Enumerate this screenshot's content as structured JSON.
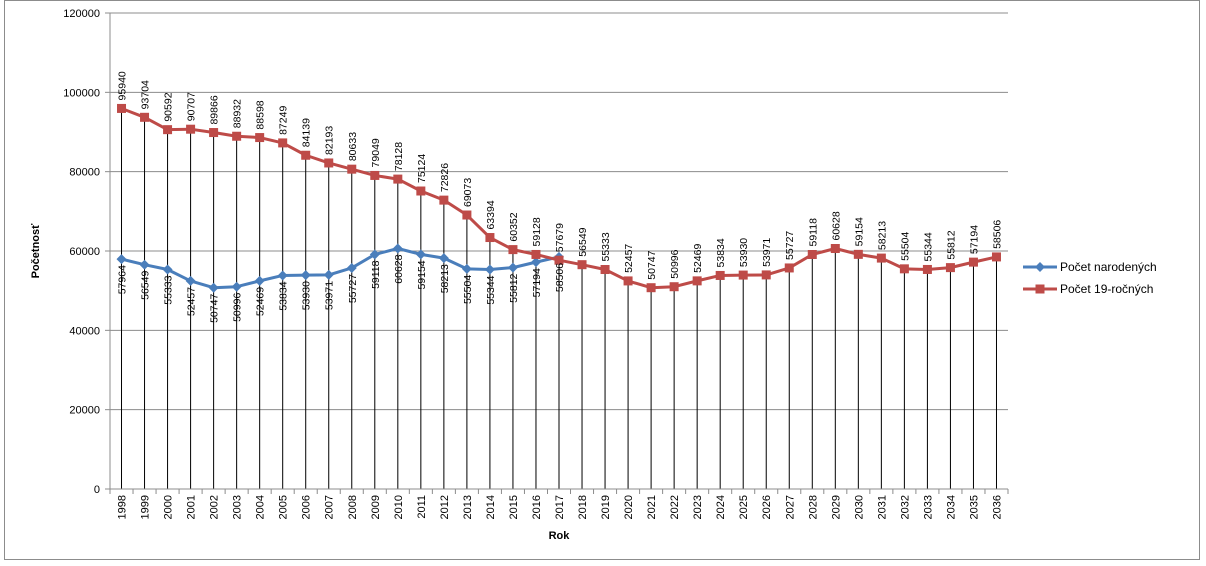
{
  "chart_data": {
    "type": "line",
    "title": "",
    "xlabel": "Rok",
    "ylabel": "Početnosť",
    "ylim": [
      0,
      120000
    ],
    "yticks": [
      "0",
      "20000",
      "40000",
      "60000",
      "80000",
      "100000",
      "120000"
    ],
    "grid": "horizontal",
    "drop_lines": true,
    "legend_position": "right",
    "categories": [
      "1998",
      "1999",
      "2000",
      "2001",
      "2002",
      "2003",
      "2004",
      "2005",
      "2006",
      "2007",
      "2008",
      "2009",
      "2010",
      "2011",
      "2012",
      "2013",
      "2014",
      "2015",
      "2016",
      "2017",
      "2018",
      "2019",
      "2020",
      "2021",
      "2022",
      "2023",
      "2024",
      "2025",
      "2026",
      "2027",
      "2028",
      "2029",
      "2030",
      "2031",
      "2032",
      "2033",
      "2034",
      "2035",
      "2036"
    ],
    "series": [
      {
        "name": "Počet narodených",
        "color": "#4a7ebb",
        "marker": "diamond",
        "values": [
          57964,
          56549,
          55333,
          52457,
          50747,
          50996,
          52469,
          53834,
          53930,
          53971,
          55727,
          59118,
          60628,
          59154,
          58213,
          55504,
          55344,
          55812,
          57194,
          58506,
          null,
          null,
          null,
          null,
          null,
          null,
          null,
          null,
          null,
          null,
          null,
          null,
          null,
          null,
          null,
          null,
          null,
          null,
          null
        ],
        "labels": [
          "57964",
          "56549",
          "55333",
          "52457",
          "50747",
          "50996",
          "52469",
          "53834",
          "53930",
          "53971",
          "55727",
          "59118",
          "60628",
          "59154",
          "58213",
          "55504",
          "55344",
          "55812",
          "57194",
          "58506",
          null,
          null,
          null,
          null,
          null,
          null,
          null,
          null,
          null,
          null,
          null,
          null,
          null,
          null,
          null,
          null,
          null,
          null,
          null
        ]
      },
      {
        "name": "Počet 19-ročných",
        "color": "#be4b48",
        "marker": "square",
        "values": [
          95940,
          93704,
          90592,
          90707,
          89866,
          88932,
          88598,
          87249,
          84139,
          82193,
          80633,
          79049,
          78128,
          75124,
          72826,
          69073,
          63394,
          60352,
          59128,
          57679,
          56549,
          55333,
          52457,
          50747,
          50996,
          52469,
          53834,
          53930,
          53971,
          55727,
          59118,
          60628,
          59154,
          58213,
          55504,
          55344,
          55812,
          57194,
          58506
        ],
        "labels": [
          "95940",
          "93704",
          "90592",
          "90707",
          "89866",
          "88932",
          "88598",
          "87249",
          "84139",
          "82193",
          "80633",
          "79049",
          "78128",
          "75124",
          "72826",
          "69073",
          "63394",
          "60352",
          "59128",
          "57679",
          "56549",
          "55333",
          "52457",
          "50747",
          "50996",
          "52469",
          "53834",
          "53930",
          "53971",
          "55727",
          "59118",
          "60628",
          "59154",
          "58213",
          "55504",
          "55344",
          "55812",
          "57194",
          "58506"
        ]
      }
    ]
  }
}
